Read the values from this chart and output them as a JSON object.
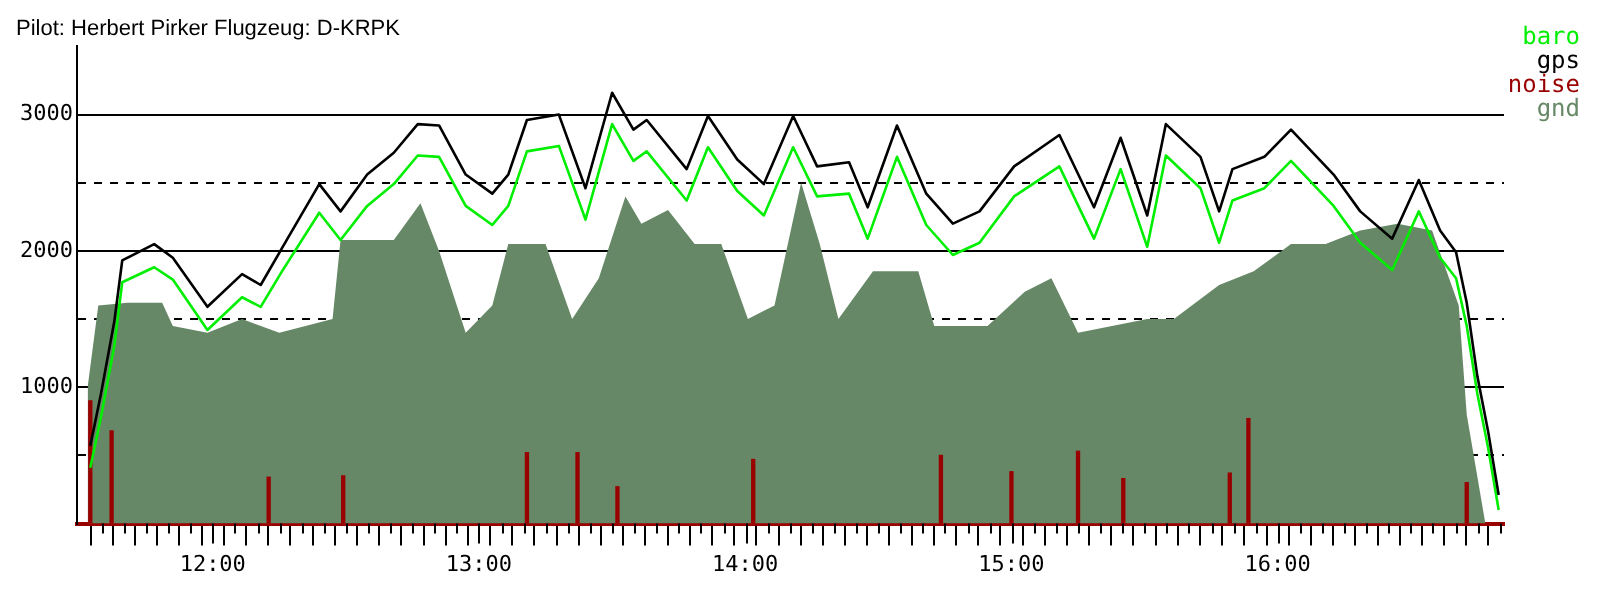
{
  "chart_data": {
    "type": "line",
    "title": "Pilot: Herbert Pirker Flugzeug: D-KRPK",
    "xlim": [
      11.49,
      16.85
    ],
    "xticks": [
      {
        "value": 11.5833,
        "label": null
      },
      {
        "value": 11.6667,
        "label": null
      },
      {
        "value": 11.75,
        "label": null
      },
      {
        "value": 11.8333,
        "label": null
      },
      {
        "value": 11.9167,
        "label": null
      },
      {
        "value": 12,
        "label": "12:00"
      },
      {
        "value": 12.0833,
        "label": null
      },
      {
        "value": 12.1667,
        "label": null
      },
      {
        "value": 12.25,
        "label": null
      },
      {
        "value": 12.3333,
        "label": null
      },
      {
        "value": 12.4167,
        "label": null
      },
      {
        "value": 12.5,
        "label": null
      },
      {
        "value": 12.5833,
        "label": null
      },
      {
        "value": 12.6667,
        "label": null
      },
      {
        "value": 12.75,
        "label": null
      },
      {
        "value": 12.8333,
        "label": null
      },
      {
        "value": 12.9167,
        "label": null
      },
      {
        "value": 13,
        "label": "13:00"
      },
      {
        "value": 13.0833,
        "label": null
      },
      {
        "value": 13.1667,
        "label": null
      },
      {
        "value": 13.25,
        "label": null
      },
      {
        "value": 13.3333,
        "label": null
      },
      {
        "value": 13.4167,
        "label": null
      },
      {
        "value": 13.5,
        "label": null
      },
      {
        "value": 13.5833,
        "label": null
      },
      {
        "value": 13.6667,
        "label": null
      },
      {
        "value": 13.75,
        "label": null
      },
      {
        "value": 13.8333,
        "label": null
      },
      {
        "value": 13.9167,
        "label": null
      },
      {
        "value": 14,
        "label": "14:00"
      },
      {
        "value": 14.0833,
        "label": null
      },
      {
        "value": 14.1667,
        "label": null
      },
      {
        "value": 14.25,
        "label": null
      },
      {
        "value": 14.3333,
        "label": null
      },
      {
        "value": 14.4167,
        "label": null
      },
      {
        "value": 14.5,
        "label": null
      },
      {
        "value": 14.5833,
        "label": null
      },
      {
        "value": 14.6667,
        "label": null
      },
      {
        "value": 14.75,
        "label": null
      },
      {
        "value": 14.8333,
        "label": null
      },
      {
        "value": 14.9167,
        "label": null
      },
      {
        "value": 15,
        "label": "15:00"
      },
      {
        "value": 15.0833,
        "label": null
      },
      {
        "value": 15.1667,
        "label": null
      },
      {
        "value": 15.25,
        "label": null
      },
      {
        "value": 15.3333,
        "label": null
      },
      {
        "value": 15.4167,
        "label": null
      },
      {
        "value": 15.5,
        "label": null
      },
      {
        "value": 15.5833,
        "label": null
      },
      {
        "value": 15.6667,
        "label": null
      },
      {
        "value": 15.75,
        "label": null
      },
      {
        "value": 15.8333,
        "label": null
      },
      {
        "value": 15.9167,
        "label": null
      },
      {
        "value": 16,
        "label": "16:00"
      },
      {
        "value": 16.0833,
        "label": null
      },
      {
        "value": 16.1667,
        "label": null
      },
      {
        "value": 16.25,
        "label": null
      },
      {
        "value": 16.3333,
        "label": null
      },
      {
        "value": 16.4167,
        "label": null
      },
      {
        "value": 16.5,
        "label": null
      },
      {
        "value": 16.5833,
        "label": null
      },
      {
        "value": 16.6667,
        "label": null
      },
      {
        "value": 16.75,
        "label": null
      },
      {
        "value": 16.8333,
        "label": null
      }
    ],
    "ylim": [
      0,
      3500
    ],
    "yticks": [
      {
        "value": 500,
        "label": null
      },
      1000,
      {
        "value": 1500,
        "label": null
      },
      2000,
      {
        "value": 2500,
        "label": null
      },
      3000
    ],
    "grid": "y",
    "legend": "top right",
    "marker": "none",
    "line_style": "solid",
    "series": [
      {
        "name": "gnd",
        "type": "area",
        "color": "#668866",
        "x": [
          11.53,
          11.57,
          11.68,
          11.81,
          11.85,
          11.98,
          12.11,
          12.25,
          12.45,
          12.48,
          12.68,
          12.78,
          12.85,
          12.95,
          13.05,
          13.11,
          13.25,
          13.35,
          13.45,
          13.55,
          13.61,
          13.71,
          13.81,
          13.91,
          14.01,
          14.11,
          14.21,
          14.28,
          14.35,
          14.48,
          14.65,
          14.71,
          14.91,
          15.05,
          15.15,
          15.25,
          15.51,
          15.61,
          15.78,
          15.91,
          16.05,
          16.18,
          16.31,
          16.45,
          16.58,
          16.68,
          16.71,
          16.78
        ],
        "values": [
          1000,
          1600,
          1620,
          1620,
          1450,
          1400,
          1500,
          1400,
          1500,
          2080,
          2080,
          2350,
          2000,
          1400,
          1600,
          2050,
          2050,
          1500,
          1800,
          2400,
          2200,
          2300,
          2050,
          2050,
          1500,
          1600,
          2500,
          2050,
          1500,
          1850,
          1850,
          1450,
          1450,
          1700,
          1800,
          1400,
          1500,
          1500,
          1750,
          1850,
          2050,
          2050,
          2150,
          2200,
          2150,
          1600,
          800,
          0
        ]
      },
      {
        "name": "noise",
        "type": "bar",
        "color": "#990000",
        "x": [
          11.54,
          11.62,
          12.21,
          12.49,
          13.18,
          13.37,
          13.52,
          14.03,
          14.735,
          15.0,
          15.25,
          15.42,
          15.82,
          15.89,
          16.71
        ],
        "values": [
          900,
          680,
          340,
          350,
          520,
          520,
          270,
          470,
          500,
          380,
          530,
          330,
          370,
          770,
          300
        ]
      },
      {
        "name": "baro",
        "color": "#00ee00",
        "x": [
          11.54,
          11.58,
          11.63,
          11.66,
          11.78,
          11.85,
          11.98,
          12.11,
          12.18,
          12.26,
          12.4,
          12.48,
          12.58,
          12.68,
          12.77,
          12.85,
          12.95,
          13.05,
          13.11,
          13.18,
          13.3,
          13.4,
          13.5,
          13.58,
          13.63,
          13.78,
          13.86,
          13.97,
          14.07,
          14.18,
          14.27,
          14.39,
          14.46,
          14.57,
          14.68,
          14.78,
          14.88,
          15.01,
          15.18,
          15.31,
          15.41,
          15.51,
          15.58,
          15.71,
          15.78,
          15.83,
          15.95,
          16.05,
          16.21,
          16.31,
          16.43,
          16.53,
          16.61,
          16.67,
          16.71,
          16.75,
          16.79,
          16.83
        ],
        "values": [
          410,
          780,
          1300,
          1770,
          1880,
          1790,
          1420,
          1660,
          1590,
          1850,
          2280,
          2080,
          2330,
          2490,
          2700,
          2690,
          2330,
          2190,
          2330,
          2730,
          2770,
          2230,
          2930,
          2660,
          2730,
          2370,
          2760,
          2440,
          2260,
          2760,
          2400,
          2420,
          2090,
          2690,
          2190,
          1970,
          2060,
          2400,
          2620,
          2090,
          2600,
          2030,
          2700,
          2460,
          2060,
          2370,
          2460,
          2660,
          2330,
          2060,
          1860,
          2290,
          1950,
          1800,
          1450,
          950,
          560,
          100
        ]
      },
      {
        "name": "gps",
        "color": "#000000",
        "x": [
          11.54,
          11.58,
          11.63,
          11.66,
          11.78,
          11.85,
          11.98,
          12.11,
          12.18,
          12.26,
          12.4,
          12.48,
          12.58,
          12.68,
          12.77,
          12.85,
          12.95,
          13.05,
          13.11,
          13.18,
          13.3,
          13.4,
          13.5,
          13.58,
          13.63,
          13.78,
          13.86,
          13.97,
          14.07,
          14.18,
          14.27,
          14.39,
          14.46,
          14.57,
          14.68,
          14.78,
          14.88,
          15.01,
          15.18,
          15.31,
          15.41,
          15.51,
          15.58,
          15.71,
          15.78,
          15.83,
          15.95,
          16.05,
          16.21,
          16.31,
          16.43,
          16.53,
          16.61,
          16.67,
          16.71,
          16.75,
          16.79,
          16.83
        ],
        "values": [
          570,
          950,
          1480,
          1930,
          2050,
          1950,
          1590,
          1830,
          1750,
          2020,
          2490,
          2290,
          2560,
          2720,
          2930,
          2920,
          2560,
          2420,
          2560,
          2960,
          3000,
          2460,
          3160,
          2890,
          2960,
          2600,
          2990,
          2670,
          2490,
          2990,
          2620,
          2650,
          2320,
          2920,
          2420,
          2200,
          2290,
          2620,
          2850,
          2320,
          2830,
          2260,
          2930,
          2690,
          2290,
          2600,
          2690,
          2890,
          2560,
          2290,
          2090,
          2520,
          2150,
          1990,
          1620,
          1080,
          680,
          210
        ]
      }
    ]
  }
}
